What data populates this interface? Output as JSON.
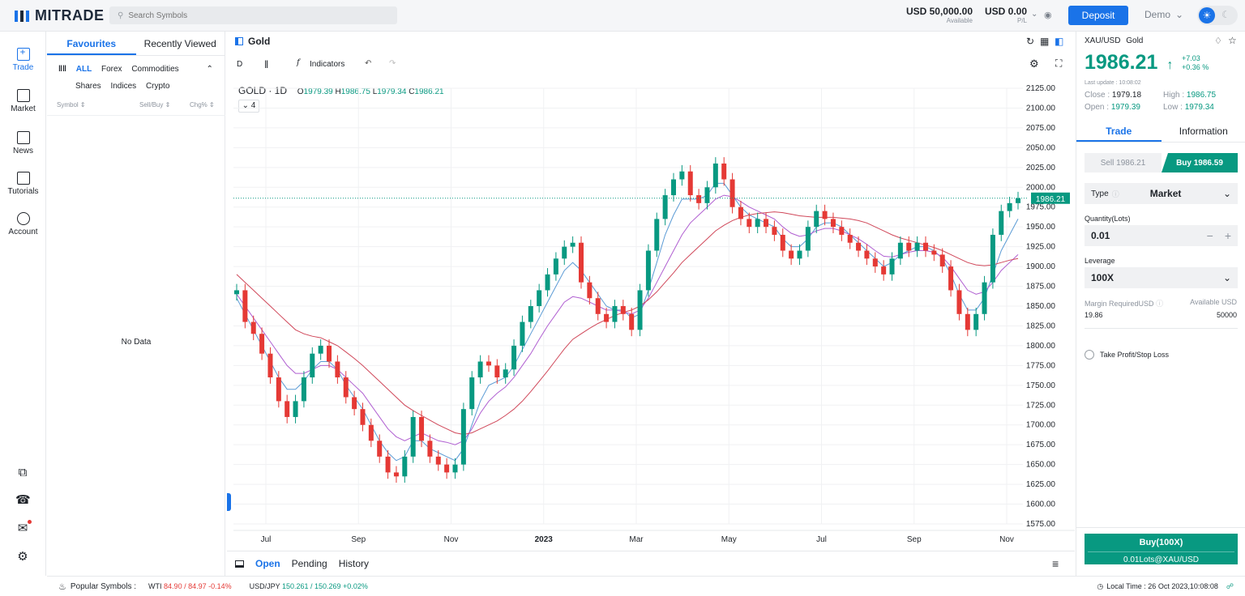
{
  "header": {
    "brand": "MITRADE",
    "search_placeholder": "Search Symbols",
    "balance": "USD 50,000.00",
    "balance_label": "Available",
    "pl": "USD 0.00",
    "pl_label": "P/L",
    "deposit_label": "Deposit",
    "mode": "Demo"
  },
  "nav": {
    "items": [
      {
        "label": "Trade"
      },
      {
        "label": "Market"
      },
      {
        "label": "News"
      },
      {
        "label": "Tutorials"
      },
      {
        "label": "Account"
      }
    ]
  },
  "watchlist": {
    "tabs": [
      "Favourites",
      "Recently Viewed"
    ],
    "categories": [
      "ALL",
      "Forex",
      "Commodities",
      "Shares",
      "Indices",
      "Crypto"
    ],
    "columns": [
      "Symbol ⇕",
      "Sell/Buy ⇕",
      "Chg% ⇕"
    ],
    "empty_text": "No Data"
  },
  "chart": {
    "title": "Gold",
    "interval": "D",
    "indicators_label": "Indicators",
    "legend_symbol": "GOLD · 1D",
    "ohlc": {
      "o_label": "O",
      "o": "1979.39",
      "h_label": "H",
      "h": "1986.75",
      "l_label": "L",
      "l": "1979.34",
      "c_label": "C",
      "c": "1986.21"
    },
    "collapse_count": "4",
    "last_price_label": "1986.21"
  },
  "chart_data": {
    "type": "line",
    "title": "GOLD · 1D",
    "ylim": [
      1575,
      2125
    ],
    "yticks": [
      "2125.00",
      "2100.00",
      "2075.00",
      "2050.00",
      "2025.00",
      "2000.00",
      "1975.00",
      "1950.00",
      "1925.00",
      "1900.00",
      "1875.00",
      "1850.00",
      "1825.00",
      "1800.00",
      "1775.00",
      "1750.00",
      "1725.00",
      "1700.00",
      "1675.00",
      "1650.00",
      "1625.00",
      "1600.00",
      "1575.00"
    ],
    "xticks": [
      "Jul",
      "Sep",
      "Nov",
      "2023",
      "Mar",
      "May",
      "Jul",
      "Sep",
      "Nov"
    ],
    "series": [
      {
        "values": [
          1870,
          1830,
          1815,
          1790,
          1760,
          1730,
          1710,
          1730,
          1760,
          1790,
          1800,
          1780,
          1760,
          1735,
          1720,
          1700,
          1680,
          1660,
          1640,
          1635,
          1660,
          1710,
          1680,
          1660,
          1650,
          1640,
          1650,
          1720,
          1760,
          1780,
          1775,
          1760,
          1770,
          1800,
          1830,
          1850,
          1870,
          1890,
          1910,
          1925,
          1930,
          1880,
          1860,
          1840,
          1830,
          1850,
          1840,
          1820,
          1870,
          1920,
          1960,
          1990,
          2010,
          2020,
          1990,
          1980,
          2000,
          2030,
          2010,
          1975,
          1960,
          1950,
          1960,
          1950,
          1940,
          1920,
          1910,
          1920,
          1950,
          1970,
          1960,
          1950,
          1940,
          1930,
          1920,
          1910,
          1900,
          1890,
          1910,
          1930,
          1920,
          1930,
          1920,
          1915,
          1900,
          1870,
          1840,
          1820,
          1840,
          1880,
          1940,
          1970,
          1980,
          1986.21
        ]
      },
      {
        "name": "",
        "values": [
          1860,
          1840,
          1820,
          1800,
          1780,
          1760,
          1745,
          1745,
          1755,
          1770,
          1780,
          1780,
          1770,
          1750,
          1735,
          1720,
          1700,
          1680,
          1665,
          1655,
          1660,
          1680,
          1680,
          1670,
          1665,
          1660,
          1655,
          1670,
          1700,
          1730,
          1750,
          1755,
          1760,
          1775,
          1795,
          1815,
          1835,
          1855,
          1875,
          1895,
          1905,
          1895,
          1880,
          1865,
          1850,
          1845,
          1845,
          1835,
          1840,
          1870,
          1905,
          1940,
          1965,
          1985,
          1985,
          1985,
          1990,
          2005,
          2005,
          1990,
          1975,
          1965,
          1960,
          1955,
          1950,
          1935,
          1925,
          1925,
          1935,
          1950,
          1955,
          1955,
          1950,
          1940,
          1930,
          1920,
          1910,
          1900,
          1905,
          1915,
          1920,
          1925,
          1925,
          1920,
          1910,
          1890,
          1865,
          1845,
          1845,
          1860,
          1890,
          1920,
          1940,
          1960
        ]
      },
      {
        "name": "",
        "values": [
          1865,
          1850,
          1835,
          1820,
          1805,
          1790,
          1775,
          1765,
          1765,
          1770,
          1775,
          1775,
          1770,
          1760,
          1750,
          1740,
          1725,
          1710,
          1695,
          1685,
          1680,
          1685,
          1690,
          1685,
          1680,
          1678,
          1675,
          1680,
          1695,
          1715,
          1730,
          1740,
          1748,
          1760,
          1775,
          1790,
          1808,
          1825,
          1840,
          1855,
          1862,
          1860,
          1855,
          1850,
          1845,
          1845,
          1843,
          1840,
          1845,
          1860,
          1880,
          1900,
          1920,
          1940,
          1955,
          1965,
          1975,
          1985,
          1990,
          1988,
          1982,
          1975,
          1970,
          1965,
          1960,
          1950,
          1942,
          1938,
          1940,
          1945,
          1948,
          1948,
          1945,
          1940,
          1935,
          1928,
          1920,
          1913,
          1912,
          1915,
          1918,
          1920,
          1920,
          1918,
          1912,
          1900,
          1885,
          1870,
          1865,
          1868,
          1880,
          1895,
          1905,
          1915
        ]
      },
      {
        "name": "",
        "values": [
          1890,
          1880,
          1870,
          1860,
          1850,
          1840,
          1830,
          1820,
          1815,
          1812,
          1810,
          1805,
          1800,
          1792,
          1784,
          1775,
          1765,
          1755,
          1745,
          1735,
          1725,
          1718,
          1712,
          1706,
          1700,
          1695,
          1690,
          1688,
          1690,
          1695,
          1700,
          1705,
          1712,
          1720,
          1730,
          1742,
          1755,
          1768,
          1782,
          1796,
          1808,
          1815,
          1822,
          1828,
          1833,
          1838,
          1842,
          1845,
          1850,
          1858,
          1868,
          1880,
          1892,
          1905,
          1915,
          1925,
          1935,
          1945,
          1952,
          1958,
          1962,
          1965,
          1967,
          1968,
          1969,
          1968,
          1966,
          1964,
          1963,
          1962,
          1962,
          1962,
          1961,
          1960,
          1958,
          1955,
          1950,
          1945,
          1940,
          1936,
          1933,
          1930,
          1927,
          1924,
          1920,
          1915,
          1910,
          1905,
          1902,
          1901,
          1902,
          1905,
          1908,
          1910
        ]
      }
    ]
  },
  "orders": {
    "tabs": [
      "Open",
      "Pending",
      "History"
    ]
  },
  "ticket": {
    "symbol": "XAU/USD",
    "name": "Gold",
    "price": "1986.21",
    "arrow": "↑",
    "change": "+7.03",
    "change_pct": "+0.36 %",
    "last_update": "Last update : 10:08:02",
    "close_label": "Close :",
    "close": "1979.18",
    "open_label": "Open :",
    "open": "1979.39",
    "high_label": "High :",
    "high": "1986.75",
    "low_label": "Low :",
    "low": "1979.34",
    "tabs": [
      "Trade",
      "Information"
    ],
    "sell": "Sell 1986.21",
    "buy": "Buy 1986.59",
    "type_label": "Type",
    "type_value": "Market",
    "qty_label": "Quantity(Lots)",
    "qty_value": "0.01",
    "leverage_label": "Leverage",
    "leverage_value": "100X",
    "margin_label": "Margin RequiredUSD",
    "margin_value": "19.86",
    "available_label": "Available USD",
    "available_value": "50000",
    "tpsl_label": "Take Profit/Stop Loss",
    "buy_big": "Buy(100X)",
    "buy_big_sub": "0.01Lots@XAU/USD"
  },
  "footer": {
    "popular_label": "Popular Symbols :",
    "s1_name": "WTI",
    "s1_value": "84.90 / 84.97 -0.14%",
    "s2_name": "USD/JPY",
    "s2_value": "150.261 / 150.269 +0.02%",
    "local_time": "Local Time : 26 Oct 2023,10:08:08"
  },
  "colors": {
    "accent": "#1a73e8",
    "up": "#089981",
    "down": "#e53935",
    "ma_blue": "#5b9bd5",
    "ma_purple": "#b05fd1",
    "ma_red": "#d0485a"
  }
}
